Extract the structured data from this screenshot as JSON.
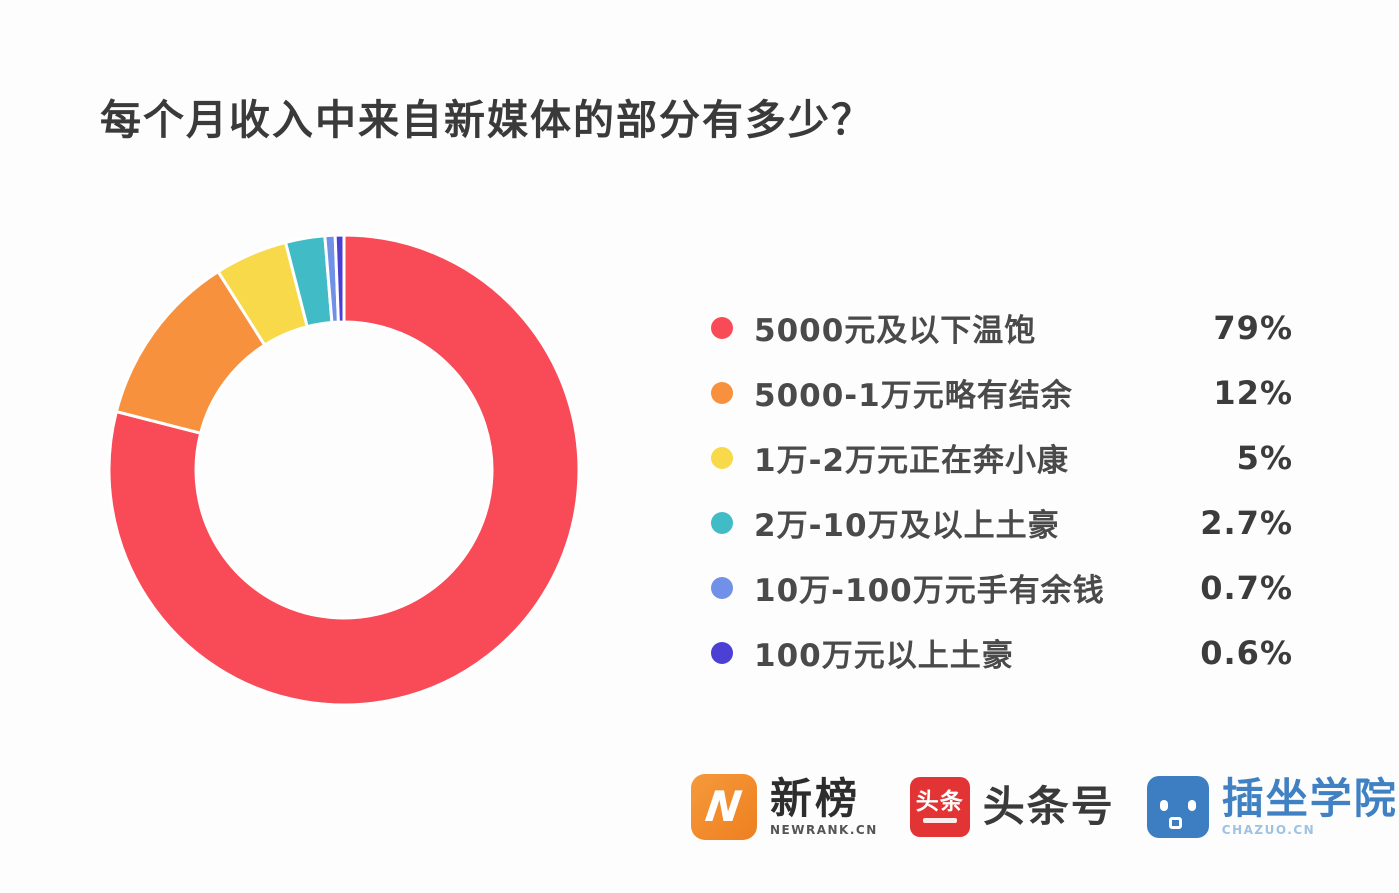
{
  "title": "每个月收入中来自新媒体的部分有多少？",
  "chart_data": {
    "type": "pie",
    "subtype": "donut",
    "title": "每个月收入中来自新媒体的部分有多少？",
    "legend_position": "right",
    "start_angle_deg": 0,
    "direction": "clockwise",
    "inner_radius_ratio": 0.63,
    "segments": [
      {
        "label": "5000元及以下温饱",
        "value": 79,
        "display": "79%",
        "color": "#f94b57"
      },
      {
        "label": "5000-1万元略有结余",
        "value": 12,
        "display": "12%",
        "color": "#f7913d"
      },
      {
        "label": "1万-2万元正在奔小康",
        "value": 5,
        "display": "5%",
        "color": "#f7d94a"
      },
      {
        "label": "2万-10万及以上土豪",
        "value": 2.7,
        "display": "2.7%",
        "color": "#41bcc6"
      },
      {
        "label": "10万-100万元手有余钱",
        "value": 0.7,
        "display": "0.7%",
        "color": "#7191e8"
      },
      {
        "label": "100万元以上土豪",
        "value": 0.6,
        "display": "0.6%",
        "color": "#4c3fd4"
      }
    ]
  },
  "footer": {
    "logos": {
      "newrank": {
        "glyph": "N",
        "text": "新榜",
        "subtext": "NEWRANK.CN"
      },
      "toutiao": {
        "badge_text": "头条",
        "text": "头条号"
      },
      "chazuo": {
        "text": "插坐学院",
        "subtext": "CHAZUO.CN"
      }
    }
  }
}
